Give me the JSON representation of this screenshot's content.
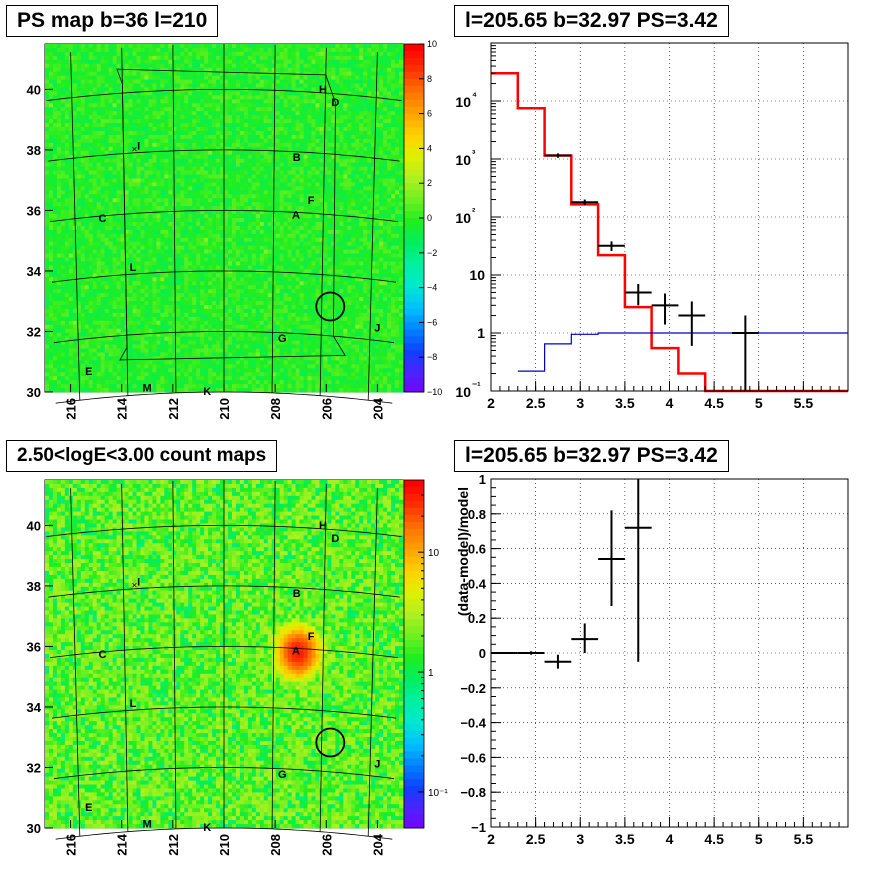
{
  "titles": {
    "tl": "PS map b=36 l=210",
    "tr": "l=205.65 b=32.97 PS=3.42",
    "bl": "2.50<logE<3.00 count maps",
    "br": "l=205.65 b=32.97 PS=3.42"
  },
  "map_axes": {
    "x_ticks": [
      "216",
      "214",
      "212",
      "210",
      "208",
      "206",
      "204"
    ],
    "y_ticks": [
      "30",
      "32",
      "34",
      "36",
      "38",
      "40"
    ]
  },
  "ps_palette": {
    "ticks": [
      "10",
      "8",
      "6",
      "4",
      "2",
      "0",
      "−2",
      "−4",
      "−6",
      "−8",
      "−10"
    ],
    "colors": [
      "#7a00ff",
      "#5020ff",
      "#1040ff",
      "#0080ff",
      "#00c0ff",
      "#00e8d0",
      "#00f0a0",
      "#00ee60",
      "#20ee20",
      "#70f020",
      "#b0f020",
      "#e0f000",
      "#ffd000",
      "#ffa000",
      "#ff7000",
      "#ff3000",
      "#ff0000"
    ]
  },
  "count_palette": {
    "ticks": [
      "10",
      "1",
      "10⁻¹"
    ],
    "colors": [
      "#7a00ff",
      "#5020ff",
      "#1040ff",
      "#0080ff",
      "#00c0ff",
      "#00e8d0",
      "#00f0a0",
      "#00ee60",
      "#20ee20",
      "#70f020",
      "#b0f020",
      "#e0f000",
      "#ffd000",
      "#ffa000",
      "#ff7000",
      "#ff3000",
      "#ff0000"
    ]
  },
  "sources": [
    "A",
    "B",
    "D",
    "E",
    "F",
    "G",
    "H",
    "I",
    "J",
    "K",
    "L",
    "M",
    "C"
  ],
  "chart_data": [
    {
      "type": "heatmap",
      "title": "PS map b=36 l=210",
      "xlim": [
        217,
        203
      ],
      "ylim": [
        30,
        41.5
      ],
      "zlim": [
        -10,
        10
      ],
      "typical_value": 0,
      "source_labels": [
        {
          "label": "A",
          "l": 207.1,
          "b": 35.8
        },
        {
          "label": "B",
          "l": 207.1,
          "b": 37.7
        },
        {
          "label": "C",
          "l": 214.9,
          "b": 35.8
        },
        {
          "label": "D",
          "l": 205.6,
          "b": 39.6
        },
        {
          "label": "E",
          "l": 215.6,
          "b": 30.8
        },
        {
          "label": "F",
          "l": 206.5,
          "b": 36.3
        },
        {
          "label": "G",
          "l": 207.6,
          "b": 31.7
        },
        {
          "label": "H",
          "l": 206.1,
          "b": 40.0
        },
        {
          "label": "I",
          "l": 213.4,
          "b": 38.1
        },
        {
          "label": "J",
          "l": 203.7,
          "b": 32.3
        },
        {
          "label": "K",
          "l": 210.7,
          "b": 29.9
        },
        {
          "label": "L",
          "l": 213.7,
          "b": 34.1
        },
        {
          "label": "M",
          "l": 213.2,
          "b": 30.1
        }
      ],
      "circle_center": {
        "l": 205.65,
        "b": 32.97
      }
    },
    {
      "type": "line",
      "title": "l=205.65 b=32.97 PS=3.42",
      "xlim": [
        2,
        6
      ],
      "ylim": [
        0.1,
        100000
      ],
      "y_scale": "log",
      "x_ticks": [
        "2",
        "2.5",
        "3",
        "3.5",
        "4",
        "4.5",
        "5",
        "5.5"
      ],
      "y_ticks": [
        "10⁻¹",
        "1",
        "10",
        "10²",
        "10³",
        "10⁴"
      ],
      "grid": true,
      "series": [
        {
          "style": "step",
          "color": "#ff0000",
          "edges": [
            2,
            2.3,
            2.6,
            2.9,
            3.2,
            3.5,
            3.8,
            4.1,
            4.4,
            6
          ],
          "values": [
            30000,
            7500,
            1150,
            165,
            22,
            2.8,
            0.55,
            0.2,
            0.1
          ]
        },
        {
          "style": "step",
          "color": "#0000cc",
          "edges": [
            2.3,
            2.6,
            2.9,
            3.2,
            6
          ],
          "values": [
            0.22,
            0.65,
            0.95,
            1.0
          ]
        },
        {
          "style": "errorbar",
          "color": "#000000",
          "x": [
            2.75,
            3.05,
            3.35,
            3.65,
            3.95,
            4.25,
            4.85
          ],
          "y": [
            1150,
            180,
            32,
            5,
            3,
            2,
            1
          ],
          "xerr": [
            0.15,
            0.15,
            0.15,
            0.15,
            0.15,
            0.15,
            0.15
          ],
          "ylo": [
            1050,
            160,
            26,
            3,
            1.4,
            0.6,
            0.1
          ],
          "yhi": [
            1250,
            200,
            38,
            7,
            4.8,
            3.5,
            2
          ]
        }
      ]
    },
    {
      "type": "heatmap",
      "title": "2.50<logE<3.00 count maps",
      "xlim": [
        217,
        203
      ],
      "ylim": [
        30,
        41.5
      ],
      "z_scale": "log",
      "zlim": [
        0.05,
        40
      ],
      "hotspot": {
        "l": 207.1,
        "b": 35.8,
        "peak_value": 30
      },
      "circle_center": {
        "l": 205.65,
        "b": 32.97
      }
    },
    {
      "type": "line",
      "title": "l=205.65 b=32.97 PS=3.42",
      "ylabel": "(data-model)/model",
      "xlim": [
        2,
        6
      ],
      "ylim": [
        -1,
        1
      ],
      "x_ticks": [
        "2",
        "2.5",
        "3",
        "3.5",
        "4",
        "4.5",
        "5",
        "5.5"
      ],
      "y_ticks": [
        "−1",
        "−0.8",
        "−0.6",
        "−0.4",
        "−0.2",
        "0",
        "0.2",
        "0.4",
        "0.6",
        "0.8",
        "1"
      ],
      "grid": true,
      "series": [
        {
          "style": "errorbar",
          "color": "#000000",
          "x": [
            2.15,
            2.45,
            2.75,
            3.05,
            3.35,
            3.65
          ],
          "y": [
            0.0,
            0.0,
            -0.05,
            0.08,
            0.54,
            0.72
          ],
          "xerr": [
            0.15,
            0.15,
            0.15,
            0.15,
            0.15,
            0.15
          ],
          "ylo": [
            -0.005,
            -0.01,
            -0.09,
            0.0,
            0.27,
            -0.05
          ],
          "yhi": [
            0.005,
            0.01,
            -0.01,
            0.17,
            0.82,
            1.0
          ]
        }
      ]
    }
  ]
}
